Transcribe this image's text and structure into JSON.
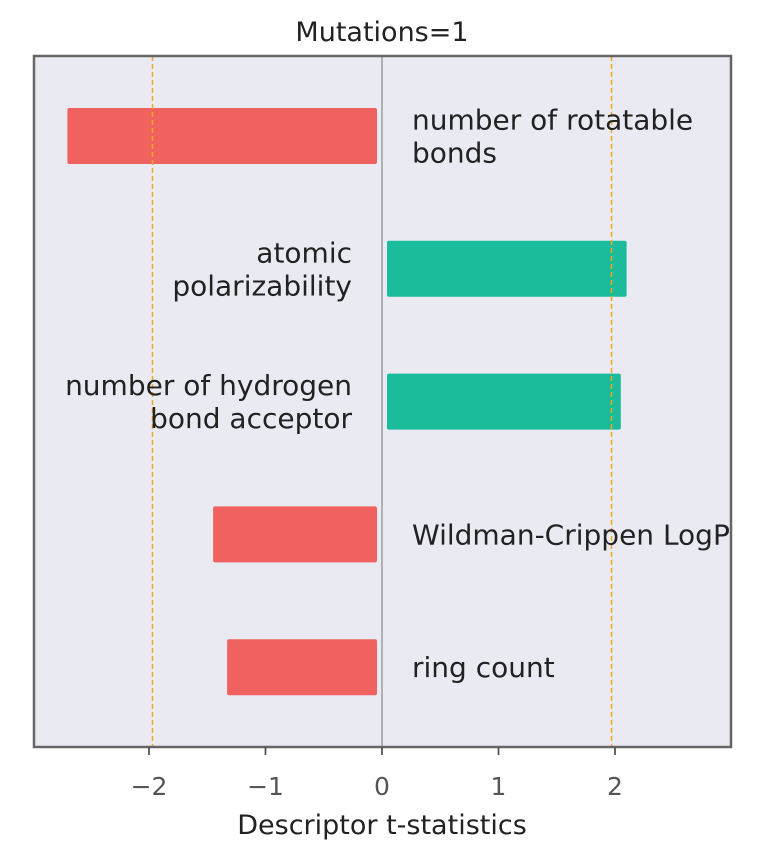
{
  "chart_data": {
    "type": "bar",
    "orientation": "horizontal",
    "title": "Mutations=1",
    "xlabel": "Descriptor t-statistics",
    "ylabel": "",
    "xlim": [
      -3.0,
      3.0
    ],
    "xticks": [
      -2,
      -1,
      0,
      1,
      2
    ],
    "xtick_labels": [
      "−2",
      "−1",
      "0",
      "1",
      "2"
    ],
    "grid": false,
    "threshold_lines": [
      -1.97,
      1.97
    ],
    "colors": {
      "negative": "#f06260",
      "positive": "#1abc9c",
      "threshold": "#f5a623",
      "zero_line": "#8c8c8c",
      "plot_background": "#eaeaf2",
      "frame": "#666666"
    },
    "bars": [
      {
        "label": "number of rotatable\nbonds",
        "value": -2.7
      },
      {
        "label": "atomic\npolarizability",
        "value": 2.1
      },
      {
        "label": "number of hydrogen\nbond acceptor",
        "value": 2.05
      },
      {
        "label": "Wildman-Crippen LogP",
        "value": -1.45
      },
      {
        "label": "ring count",
        "value": -1.33
      }
    ]
  }
}
